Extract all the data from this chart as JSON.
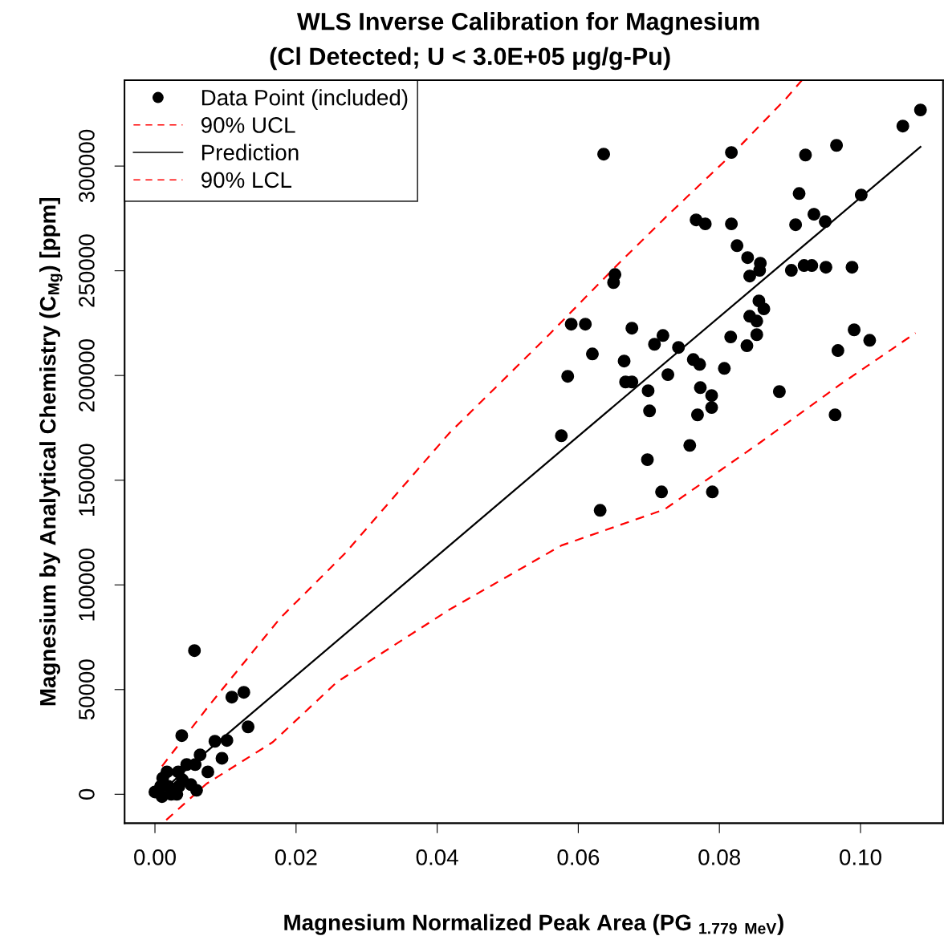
{
  "chart_data": {
    "type": "scatter",
    "title": "WLS Inverse Calibration for Magnesium",
    "subtitle": "(Cl Detected; U < 3.0E+05 μg/g-Pu)",
    "xlabel": "Magnesium Normalized Peak Area (PG $_{1.779}$ $_{MeV}$)",
    "ylabel": "Magnesium by Analytical Chemistry (C$_{Mg}$) [ppm]",
    "xlim": [
      -0.0043,
      0.1117
    ],
    "ylim": [
      -13800,
      341000
    ],
    "xticks": [
      {
        "value": 0,
        "label": "0.00"
      },
      {
        "value": 0.02,
        "label": "0.02"
      },
      {
        "value": 0.04,
        "label": "0.04"
      },
      {
        "value": 0.06,
        "label": "0.06"
      },
      {
        "value": 0.08,
        "label": "0.08"
      },
      {
        "value": 0.1,
        "label": "0.10"
      }
    ],
    "yticks": [
      0,
      50000,
      100000,
      150000,
      200000,
      250000,
      300000
    ],
    "grid": false,
    "legend": "top left",
    "series": [
      {
        "name": "Data Point (included)",
        "color": "#000000",
        "marker": "circle",
        "x": [
          0.0636,
          0.1085,
          0.106,
          0.0817,
          0.0922,
          0.0966,
          0.0913,
          0.1001,
          0.0767,
          0.078,
          0.0817,
          0.0908,
          0.0934,
          0.095,
          0.0825,
          0.0652,
          0.065,
          0.084,
          0.0858,
          0.0857,
          0.0843,
          0.0902,
          0.092,
          0.0931,
          0.0951,
          0.0988,
          0.059,
          0.061,
          0.0676,
          0.062,
          0.0585,
          0.0665,
          0.0667,
          0.0676,
          0.0708,
          0.072,
          0.0742,
          0.0727,
          0.0763,
          0.0772,
          0.0699,
          0.0701,
          0.0773,
          0.0789,
          0.0789,
          0.0769,
          0.0807,
          0.0816,
          0.0839,
          0.0856,
          0.0863,
          0.0843,
          0.0853,
          0.0853,
          0.0991,
          0.1013,
          0.0968,
          0.0885,
          0.0964,
          0.0576,
          0.0758,
          0.0698,
          0.0718,
          0.079,
          0.0631,
          0.0056,
          0.0109,
          0.0126,
          0.0132,
          0.0038,
          0.0085,
          0.0102,
          0.0064,
          0.0095,
          0.0075,
          0.0057,
          0.0045,
          0.0051,
          0.0059,
          0.0017,
          0.0033,
          0.0039,
          0.0011,
          0.0008,
          0.001,
          0.0023,
          0.0031,
          0.0034,
          0.0019,
          0.0
        ],
        "values": [
          305700,
          326800,
          319100,
          306500,
          305300,
          309900,
          286900,
          286200,
          274300,
          272400,
          272400,
          272000,
          277000,
          273500,
          262000,
          248200,
          244400,
          256300,
          253600,
          250200,
          247500,
          250200,
          252500,
          252500,
          251700,
          251700,
          224500,
          224500,
          222600,
          210300,
          199600,
          206900,
          196900,
          196900,
          214900,
          219100,
          213400,
          200400,
          207600,
          205300,
          192700,
          183100,
          194200,
          190400,
          184700,
          181200,
          203400,
          218400,
          214200,
          235600,
          231800,
          228300,
          226000,
          219500,
          221800,
          216800,
          211900,
          192300,
          181200,
          171200,
          166600,
          159800,
          144400,
          144400,
          135600,
          68600,
          46400,
          48700,
          32200,
          28000,
          25300,
          25700,
          18800,
          17200,
          10700,
          14200,
          14200,
          4600,
          1900,
          10700,
          10700,
          6900,
          7700,
          3800,
          -1100,
          0,
          0,
          3800,
          3800,
          1100
        ]
      },
      {
        "name": "90% UCL",
        "type": "line",
        "color": "#ff0000",
        "line_style": "dashed",
        "x": [
          0.001,
          0.0076,
          0.0178,
          0.0269,
          0.0417,
          0.0553,
          0.0652,
          0.0727,
          0.0818,
          0.0894,
          0.0917
        ],
        "values": [
          13400,
          42100,
          84300,
          114900,
          172400,
          217600,
          251700,
          276600,
          305700,
          332100,
          341000
        ]
      },
      {
        "name": "Prediction",
        "type": "line",
        "color": "#000000",
        "line_style": "solid",
        "x": [
          0.001,
          0.0065,
          0.0555,
          0.1085
        ],
        "values": [
          1500,
          18000,
          158200,
          309200
        ]
      },
      {
        "name": "90% LCL",
        "type": "line",
        "color": "#ff0000",
        "line_style": "dashed",
        "x": [
          0.0016,
          0.0073,
          0.0167,
          0.0258,
          0.0417,
          0.0576,
          0.0722,
          0.0857,
          0.097,
          0.1078
        ],
        "values": [
          -12300,
          5000,
          24900,
          53600,
          88100,
          118800,
          136000,
          167800,
          195400,
          220300
        ]
      }
    ]
  }
}
